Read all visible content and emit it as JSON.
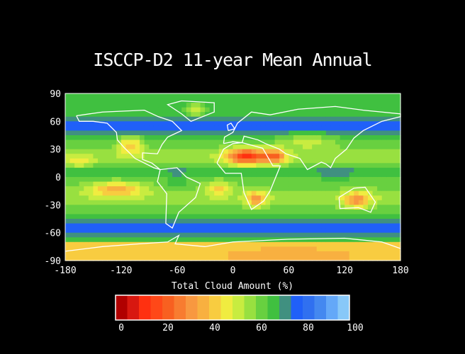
{
  "chart_data": {
    "type": "heatmap",
    "title": "ISCCP-D2 11-year Mean Annual",
    "xlim": [
      -180,
      180
    ],
    "ylim": [
      -90,
      90
    ],
    "x_ticks": [
      "-180",
      "-120",
      "-60",
      "0",
      "60",
      "120",
      "180"
    ],
    "y_ticks": [
      "90",
      "60",
      "30",
      "0",
      "-30",
      "-60",
      "-90"
    ],
    "colorbar": {
      "label": "Total Cloud Amount (%)",
      "range": [
        0,
        100
      ],
      "ticks": [
        "0",
        "20",
        "40",
        "60",
        "80",
        "100"
      ],
      "colors": [
        "#b00000",
        "#d81810",
        "#ff3010",
        "#ff4818",
        "#f86020",
        "#f87c30",
        "#f89840",
        "#f8b040",
        "#f8cc40",
        "#f0ec40",
        "#c8ec40",
        "#98e040",
        "#68d040",
        "#40c040",
        "#409080",
        "#2060f8",
        "#3070f0",
        "#4488f0",
        "#64a8f8",
        "#88c8f8"
      ]
    },
    "coastline_color": "#ffffff",
    "background": "#000000"
  }
}
